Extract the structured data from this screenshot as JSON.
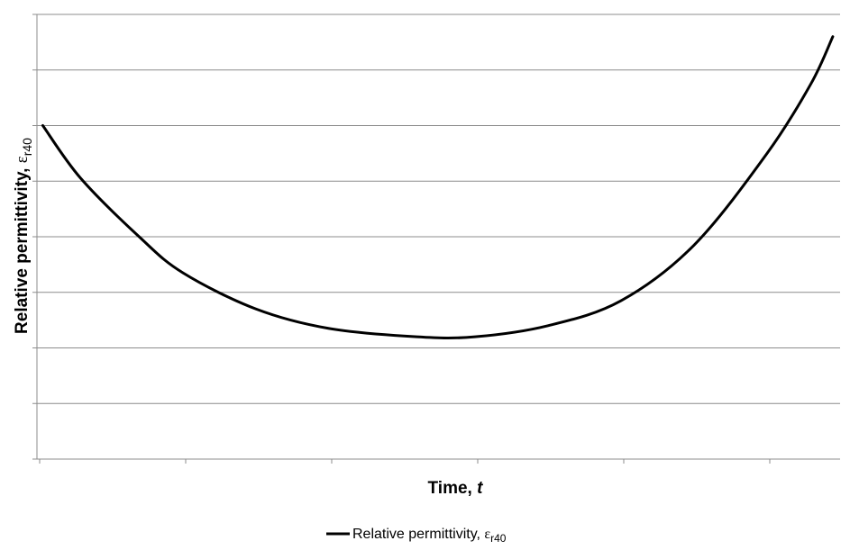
{
  "chart_data": {
    "type": "line",
    "title": "",
    "xlabel": {
      "main": "Time, ",
      "italic": "t"
    },
    "ylabel": {
      "main": "Relative permittivity,  ",
      "symbol": "ε",
      "sub": "r40"
    },
    "grid": {
      "horizontal": true,
      "vertical": false
    },
    "axis_tick_labels_visible": false,
    "x_ticks": [
      0,
      1,
      2,
      3,
      4,
      5
    ],
    "y_ticks": [
      0,
      1,
      2,
      3,
      4,
      5,
      6,
      7,
      8
    ],
    "xlim": [
      0,
      5.5
    ],
    "ylim": [
      0,
      8
    ],
    "legend_position": "bottom",
    "series": [
      {
        "name": {
          "main": "Relative permittivity,  ",
          "symbol": "ε",
          "sub": "r40"
        },
        "color": "#000000",
        "x": [
          0.04,
          0.3,
          0.7,
          1.0,
          1.5,
          2.0,
          2.6,
          3.0,
          3.5,
          4.0,
          4.5,
          5.0,
          5.3,
          5.45
        ],
        "y": [
          6.0,
          5.05,
          4.0,
          3.35,
          2.7,
          2.35,
          2.2,
          2.2,
          2.4,
          2.85,
          3.85,
          5.5,
          6.75,
          7.6
        ]
      }
    ]
  }
}
